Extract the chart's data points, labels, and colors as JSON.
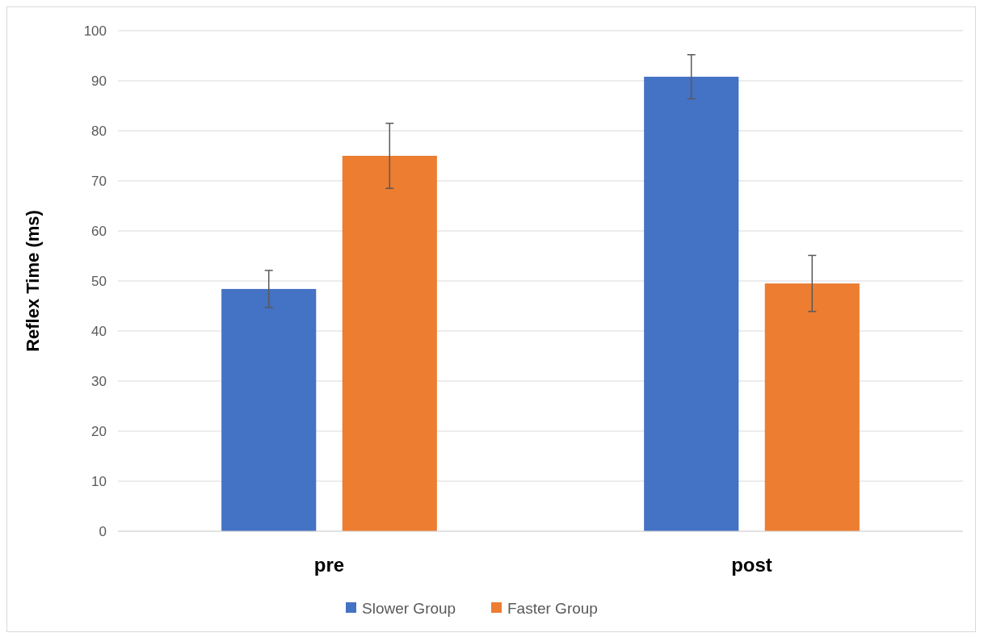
{
  "chart_data": {
    "type": "bar",
    "ylabel": "Reflex Time (ms)",
    "categories": [
      "pre",
      "post"
    ],
    "series": [
      {
        "name": "Slower Group",
        "color": "#4472c4",
        "values": [
          48.4,
          90.8
        ],
        "errors": [
          3.7,
          4.4
        ]
      },
      {
        "name": "Faster Group",
        "color": "#ed7d31",
        "values": [
          75,
          49.5
        ],
        "errors": [
          6.5,
          5.6
        ]
      }
    ],
    "ylim": [
      0,
      100
    ],
    "yticks": [
      0,
      10,
      20,
      30,
      40,
      50,
      60,
      70,
      80,
      90,
      100
    ],
    "grid": "y",
    "legend": "bottom"
  }
}
